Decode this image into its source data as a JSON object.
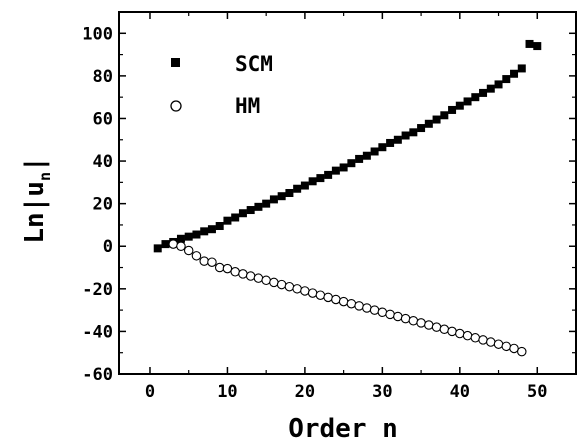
{
  "chart_data": {
    "type": "scatter",
    "xlabel": "Order n",
    "ylabel_main": "Ln|u",
    "ylabel_sub": "n",
    "ylabel_end": "|",
    "xlim": [
      -4,
      55
    ],
    "ylim": [
      -60,
      110
    ],
    "xticks": [
      0,
      10,
      20,
      30,
      40,
      50
    ],
    "yticks": [
      -60,
      -40,
      -20,
      0,
      20,
      40,
      60,
      80,
      100
    ],
    "grid": false,
    "legend_position": "top-center",
    "series": [
      {
        "name": "SCM",
        "marker": "filled-square",
        "color": "#000000",
        "x": [
          1,
          2,
          3,
          4,
          5,
          6,
          7,
          8,
          9,
          10,
          11,
          12,
          13,
          14,
          15,
          16,
          17,
          18,
          19,
          20,
          21,
          22,
          23,
          24,
          25,
          26,
          27,
          28,
          29,
          30,
          31,
          32,
          33,
          34,
          35,
          36,
          37,
          38,
          39,
          40,
          41,
          42,
          43,
          44,
          45,
          46,
          47,
          48,
          49,
          50
        ],
        "y": [
          -1,
          1,
          2,
          3.5,
          4.5,
          5.5,
          7,
          8,
          9.5,
          12,
          13.5,
          15.5,
          17,
          18.5,
          20,
          22,
          23.5,
          25,
          27,
          28.5,
          30.5,
          32,
          33.5,
          35.5,
          37,
          39,
          41,
          42.5,
          44.5,
          46.5,
          48.5,
          50,
          52,
          53.5,
          55.5,
          57.5,
          59.5,
          61.5,
          64,
          66,
          68,
          70,
          72,
          74,
          76,
          78.5,
          81,
          83.5,
          95,
          94
        ]
      },
      {
        "name": "HM",
        "marker": "open-circle",
        "color": "#000000",
        "x": [
          3,
          4,
          5,
          6,
          7,
          8,
          9,
          10,
          11,
          12,
          13,
          14,
          15,
          16,
          17,
          18,
          19,
          20,
          21,
          22,
          23,
          24,
          25,
          26,
          27,
          28,
          29,
          30,
          31,
          32,
          33,
          34,
          35,
          36,
          37,
          38,
          39,
          40,
          41,
          42,
          43,
          44,
          45,
          46,
          47,
          48
        ],
        "y": [
          1,
          0,
          -2,
          -4.5,
          -7,
          -7.5,
          -10,
          -10.5,
          -12,
          -13,
          -14,
          -15,
          -16,
          -17,
          -18,
          -19,
          -20,
          -21,
          -22,
          -23,
          -24,
          -25,
          -26,
          -27,
          -28,
          -29,
          -30,
          -31,
          -32,
          -33,
          -34,
          -35,
          -36,
          -37,
          -38,
          -39,
          -40,
          -41,
          -42,
          -43,
          -44,
          -45,
          -46,
          -47,
          -48,
          -49.5
        ]
      }
    ]
  }
}
